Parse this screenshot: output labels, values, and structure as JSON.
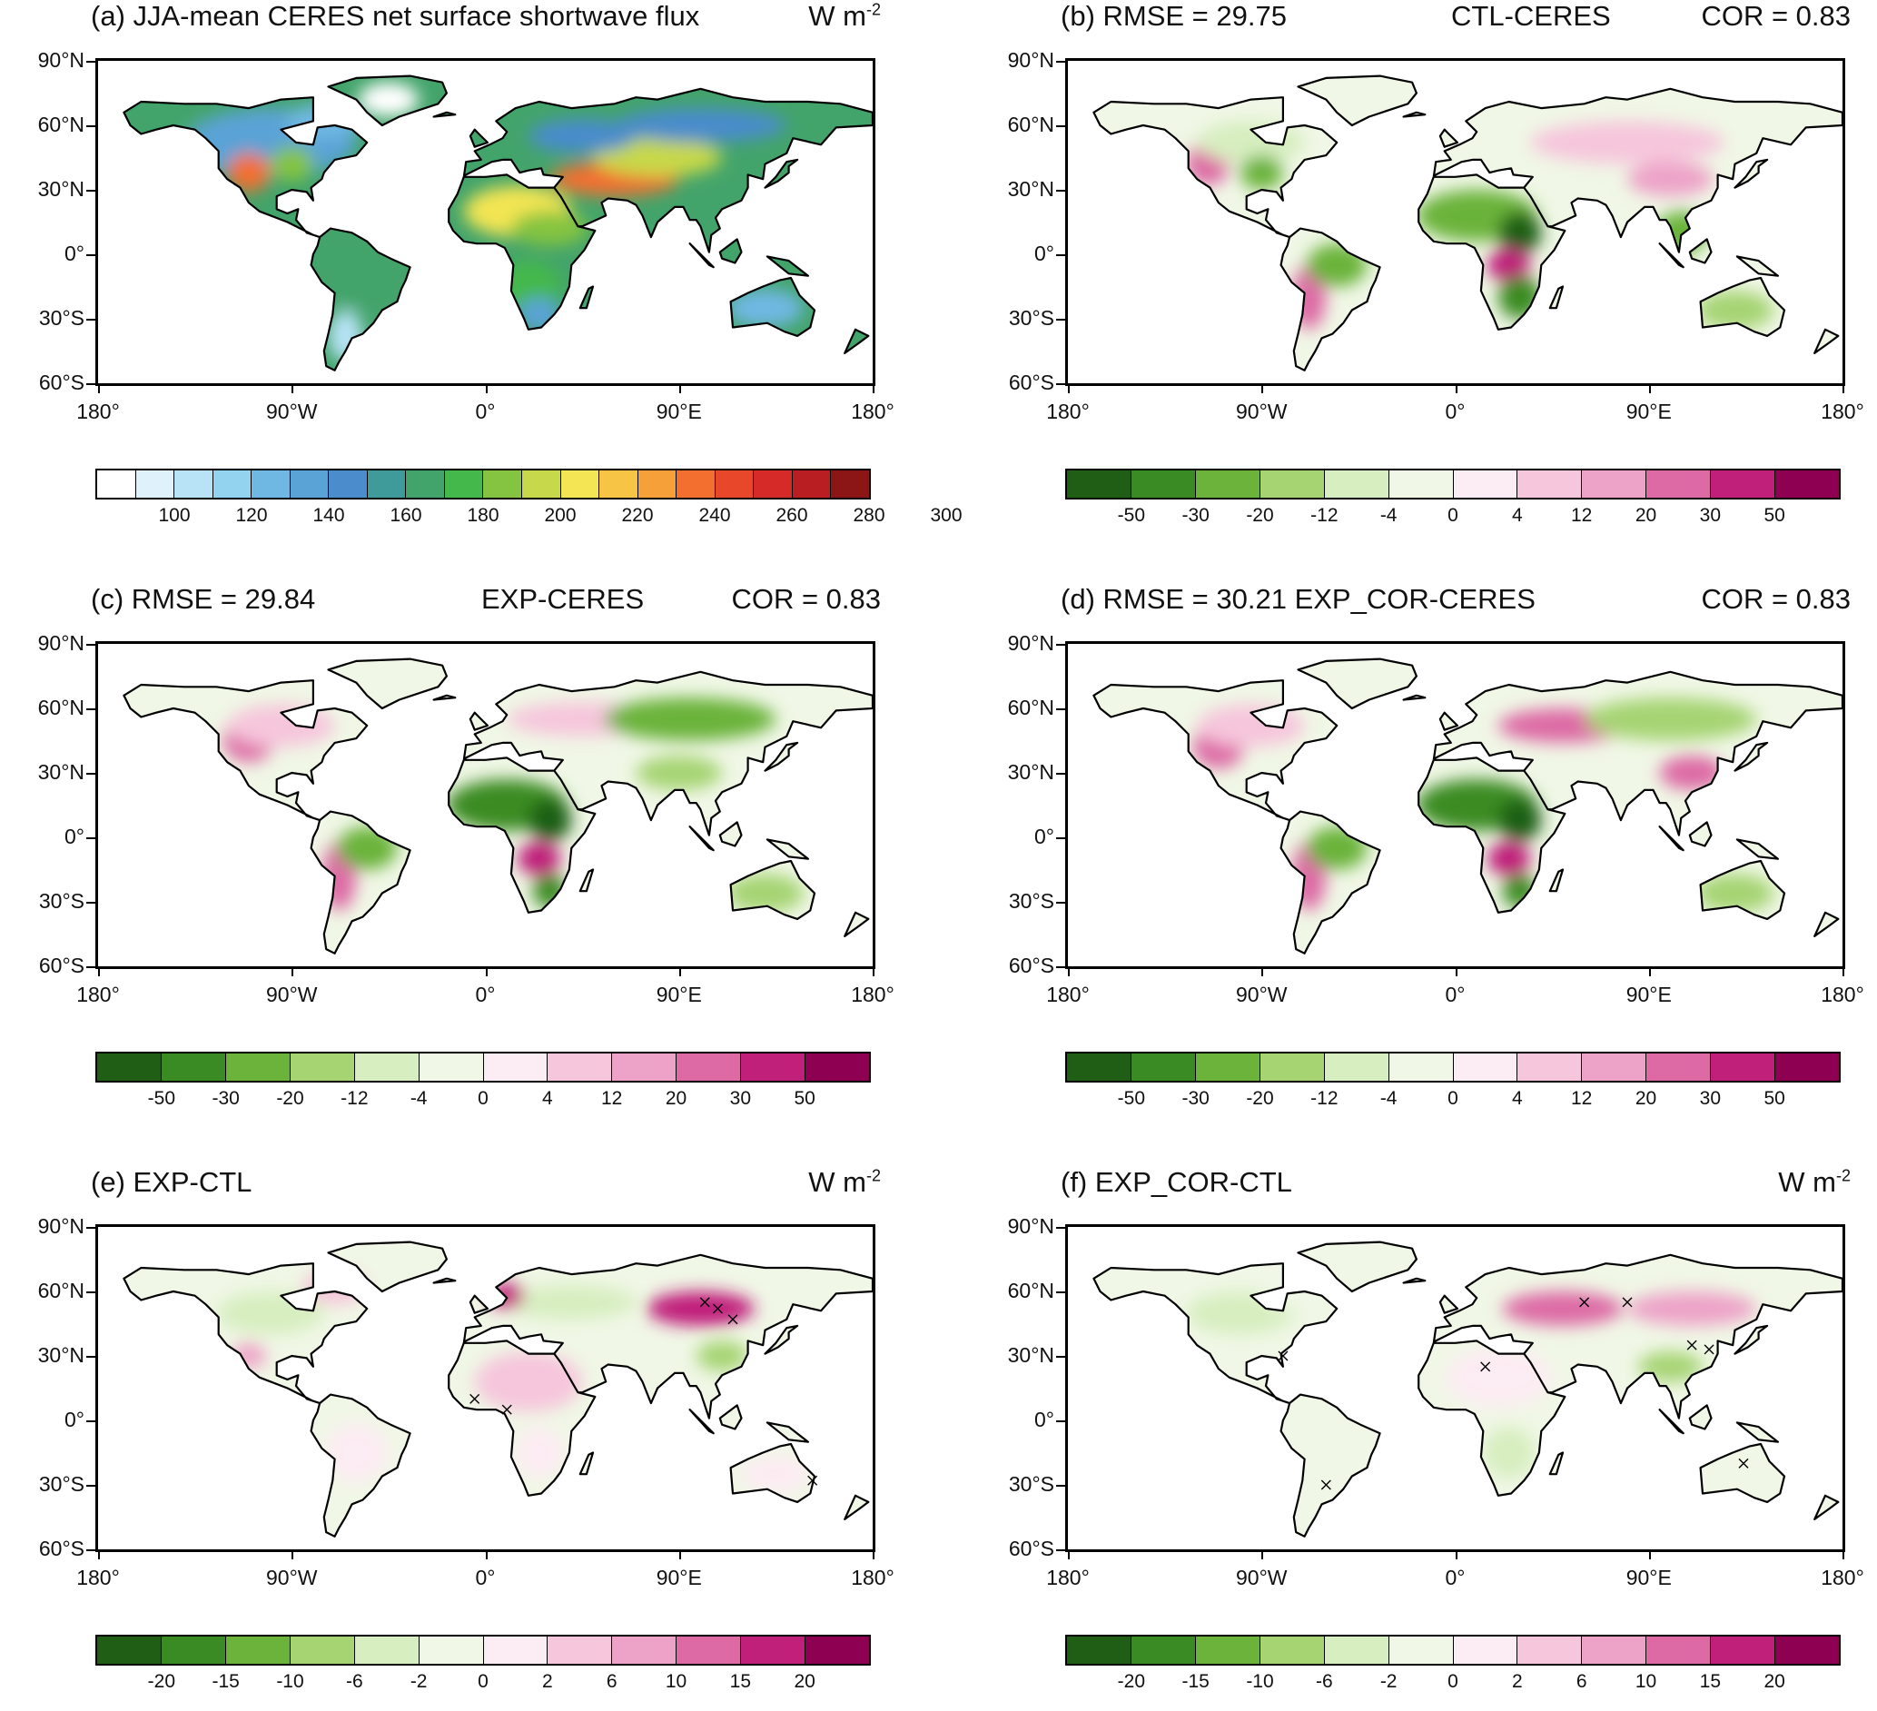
{
  "lat_labels": [
    "90°N",
    "60°N",
    "30°N",
    "0°",
    "30°S",
    "60°S"
  ],
  "lon_labels": [
    "180°",
    "90°W",
    "0°",
    "90°E",
    "180°"
  ],
  "palettes": {
    "abs": [
      "#ffffff",
      "#dff2fb",
      "#b8e3f6",
      "#94d3f0",
      "#6fb8e3",
      "#5aa3d6",
      "#4a8ccc",
      "#3f9a9a",
      "#43a46b",
      "#45b84b",
      "#85c441",
      "#c7d84a",
      "#f3e553",
      "#f8c446",
      "#f6a03a",
      "#f26f30",
      "#e8472a",
      "#d52a28",
      "#b91e22",
      "#8c1516"
    ],
    "diff": [
      "#1f5e14",
      "#3b8b24",
      "#6bb33b",
      "#a6d473",
      "#d7eec0",
      "#f0f7e6",
      "#fcecf3",
      "#f6c6dc",
      "#eda3c8",
      "#dd6aa5",
      "#c01f7a",
      "#8e0152"
    ]
  },
  "panels": [
    {
      "id": "a",
      "title_left": "(a) JJA-mean CERES net surface shortwave flux",
      "title_center": "",
      "title_right": "W m",
      "title_right_sup": "-2",
      "palette": "abs",
      "colorbar_labels": [
        "100",
        "120",
        "140",
        "160",
        "180",
        "200",
        "220",
        "240",
        "260",
        "280",
        "300"
      ],
      "hatch": false
    },
    {
      "id": "b",
      "title_left": "(b) RMSE = 29.75",
      "title_center": "CTL-CERES",
      "title_right": "COR = 0.83",
      "title_right_sup": "",
      "palette": "diff",
      "colorbar_labels": [
        "-50",
        "-30",
        "-20",
        "-12",
        "-4",
        "0",
        "4",
        "12",
        "20",
        "30",
        "50"
      ],
      "hatch": false
    },
    {
      "id": "c",
      "title_left": "(c) RMSE = 29.84",
      "title_center": "EXP-CERES",
      "title_right": "COR = 0.83",
      "title_right_sup": "",
      "palette": "diff",
      "colorbar_labels": [
        "-50",
        "-30",
        "-20",
        "-12",
        "-4",
        "0",
        "4",
        "12",
        "20",
        "30",
        "50"
      ],
      "hatch": false
    },
    {
      "id": "d",
      "title_left": "(d) RMSE = 30.21  EXP_COR-CERES",
      "title_center": "",
      "title_right": "COR = 0.83",
      "title_right_sup": "",
      "palette": "diff",
      "colorbar_labels": [
        "-50",
        "-30",
        "-20",
        "-12",
        "-4",
        "0",
        "4",
        "12",
        "20",
        "30",
        "50"
      ],
      "hatch": false
    },
    {
      "id": "e",
      "title_left": "(e) EXP-CTL",
      "title_center": "",
      "title_right": "W m",
      "title_right_sup": "-2",
      "palette": "diff",
      "colorbar_labels": [
        "-20",
        "-15",
        "-10",
        "-6",
        "-2",
        "0",
        "2",
        "6",
        "10",
        "15",
        "20"
      ],
      "hatch": true
    },
    {
      "id": "f",
      "title_left": "(f) EXP_COR-CTL",
      "title_center": "",
      "title_right": "W m",
      "title_right_sup": "-2",
      "palette": "diff",
      "colorbar_labels": [
        "-20",
        "-15",
        "-10",
        "-6",
        "-2",
        "0",
        "2",
        "6",
        "10",
        "15",
        "20"
      ],
      "hatch": true
    }
  ]
}
